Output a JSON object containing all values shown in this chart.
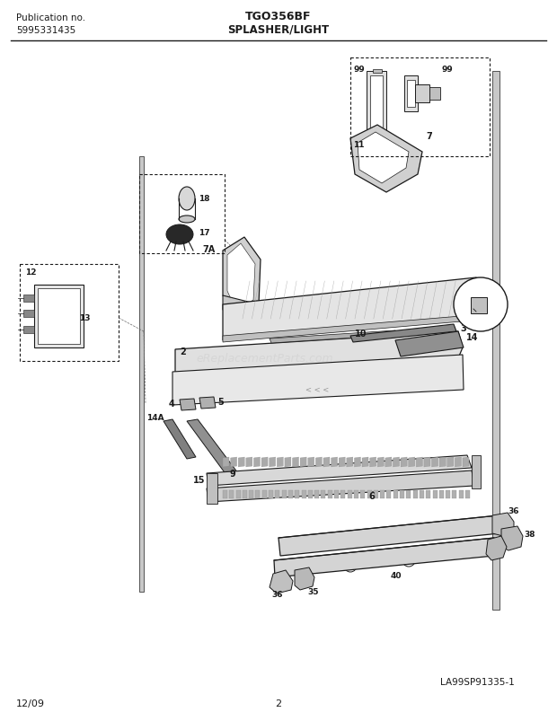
{
  "title": "TGO356BF",
  "subtitle": "SPLASHER/LIGHT",
  "pub_no": "Publication no.",
  "pub_num": "5995331435",
  "date": "12/09",
  "page": "2",
  "diagram_id": "LA99SP91335-1",
  "bg_color": "#ffffff",
  "lc": "#1a1a1a",
  "watermark": "eReplacementParts.com",
  "fig_w": 6.2,
  "fig_h": 8.04,
  "dpi": 100
}
